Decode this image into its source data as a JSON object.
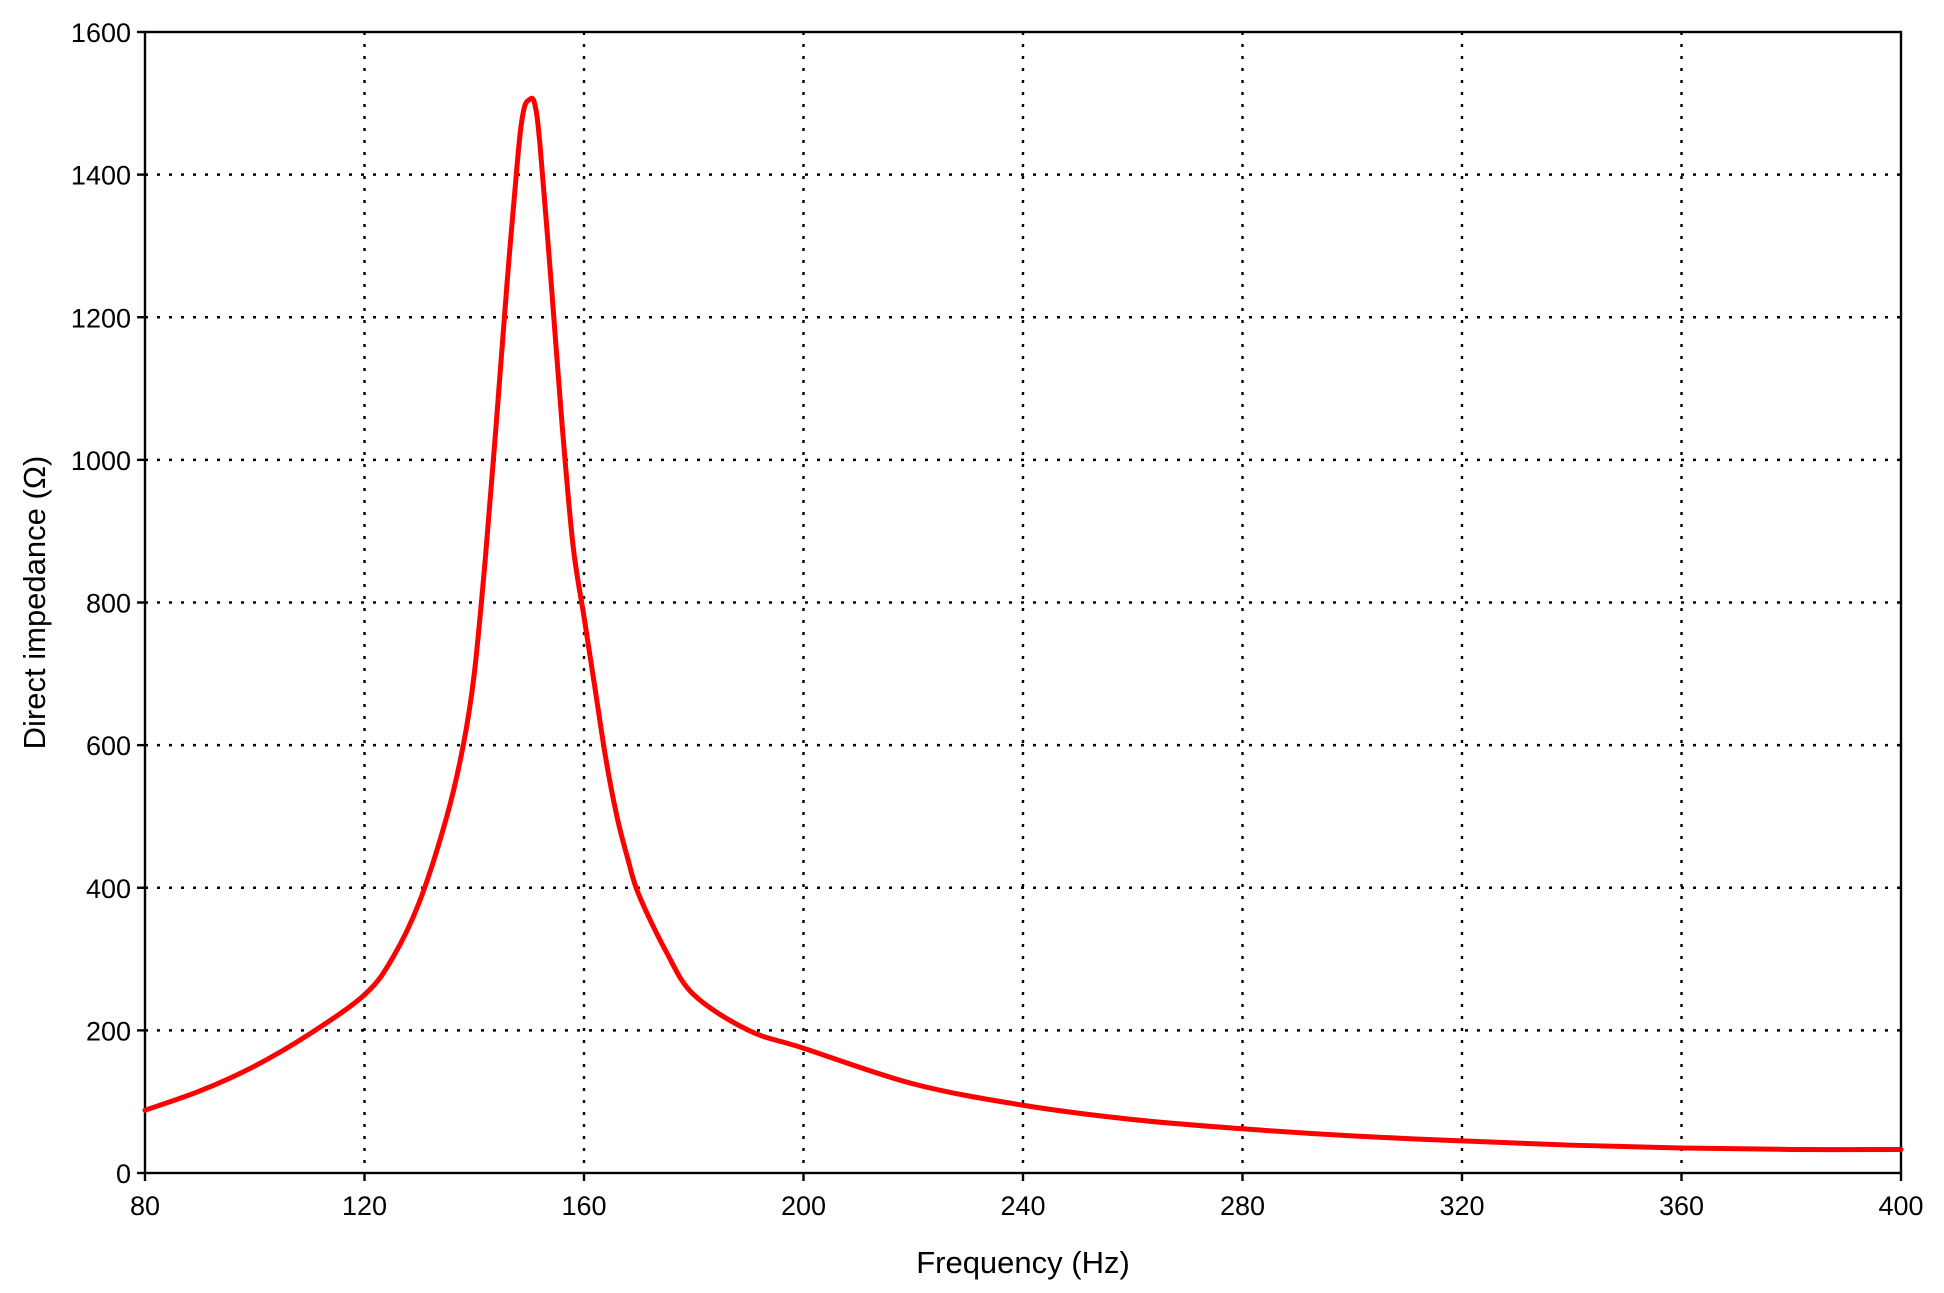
{
  "chart_data": {
    "type": "line",
    "title": "",
    "xlabel": "Frequency (Hz)",
    "ylabel": "Direct impedance (Ω)",
    "xlim": [
      80,
      400
    ],
    "ylim": [
      0,
      1600
    ],
    "xticks": [
      80,
      120,
      160,
      200,
      240,
      280,
      320,
      360,
      400
    ],
    "yticks": [
      0,
      200,
      400,
      600,
      800,
      1000,
      1200,
      1400,
      1600
    ],
    "xtick_labels": [
      "80",
      "120",
      "160",
      "200",
      "240",
      "280",
      "320",
      "360",
      "400"
    ],
    "ytick_labels": [
      "0",
      "200",
      "400",
      "600",
      "800",
      "1000",
      "1200",
      "1400",
      "1600"
    ],
    "grid": true,
    "grid_style": "dotted",
    "legend": "none",
    "series": [
      {
        "color": "#ff0000",
        "x": [
          80,
          90,
          100,
          110,
          120,
          125,
          130,
          135,
          138,
          140,
          142,
          144,
          146,
          148,
          149,
          150,
          151,
          152,
          154,
          156,
          158,
          160,
          162,
          164,
          166,
          168,
          170,
          175,
          180,
          190,
          200,
          220,
          240,
          260,
          280,
          300,
          320,
          340,
          360,
          380,
          400
        ],
        "y": [
          88,
          115,
          150,
          195,
          250,
          300,
          380,
          500,
          600,
          700,
          860,
          1050,
          1250,
          1430,
          1490,
          1505,
          1500,
          1440,
          1250,
          1050,
          880,
          780,
          680,
          580,
          500,
          440,
          390,
          310,
          250,
          200,
          175,
          125,
          95,
          75,
          62,
          52,
          45,
          39,
          35,
          33,
          33
        ]
      }
    ]
  }
}
